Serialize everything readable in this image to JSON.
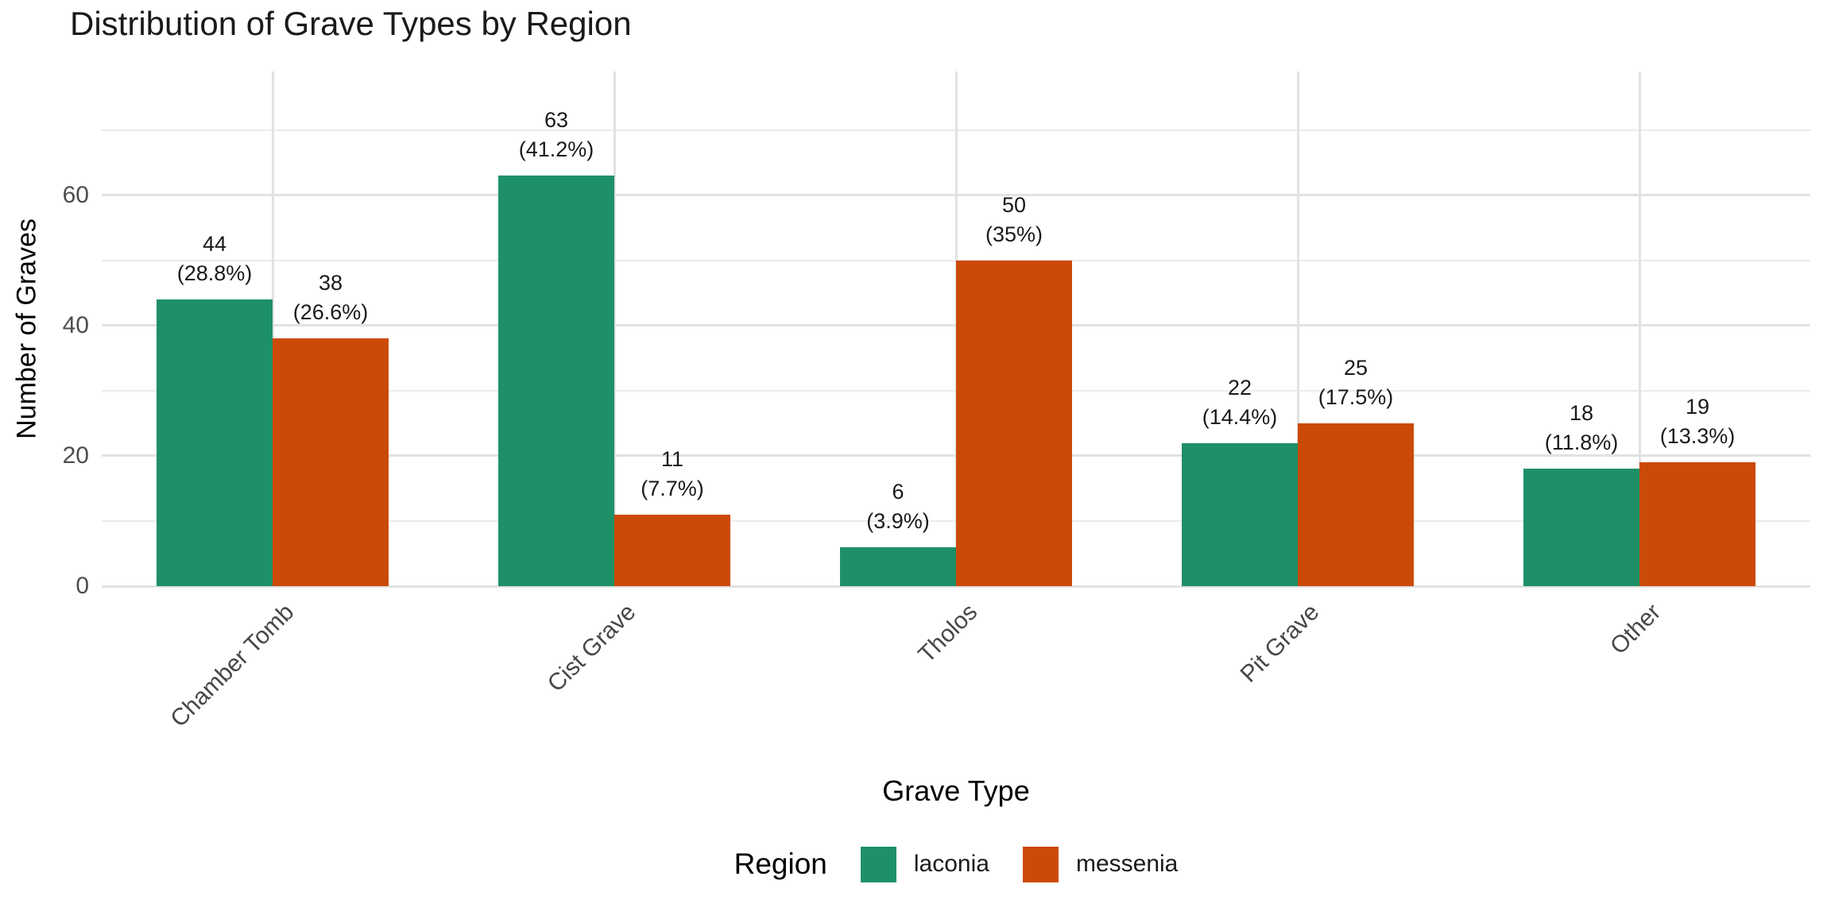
{
  "title": "Distribution of Grave Types by Region",
  "axes": {
    "x_title": "Grave Type",
    "y_title": "Number of Graves",
    "y_tick_labels": [
      "0",
      "20",
      "40",
      "60"
    ]
  },
  "legend": {
    "title": "Region",
    "items": [
      {
        "label": "laconia",
        "color": "#1E9068"
      },
      {
        "label": "messenia",
        "color": "#CC4A08"
      }
    ]
  },
  "colors": {
    "laconia": "#1E9068",
    "messenia": "#CC4A08",
    "grid_major": "#e2e2e2",
    "grid_minor": "#ebebeb",
    "tick_text": "#4d4d4d"
  },
  "chart_data": {
    "type": "bar",
    "title": "Distribution of Grave Types by Region",
    "xlabel": "Grave Type",
    "ylabel": "Number of Graves",
    "categories": [
      "Chamber Tomb",
      "Cist Grave",
      "Tholos",
      "Pit Grave",
      "Other"
    ],
    "series": [
      {
        "name": "laconia",
        "color": "#1E9068",
        "values": [
          44,
          63,
          6,
          22,
          18
        ],
        "pct_labels": [
          "28.8%",
          "41.2%",
          "3.9%",
          "14.4%",
          "11.8%"
        ]
      },
      {
        "name": "messenia",
        "color": "#CC4A08",
        "values": [
          38,
          11,
          50,
          25,
          19
        ],
        "pct_labels": [
          "26.6%",
          "7.7%",
          "35%",
          "17.5%",
          "13.3%"
        ]
      }
    ],
    "ylim": [
      0,
      79
    ],
    "y_ticks": [
      0,
      20,
      40,
      60
    ],
    "grid": {
      "major": [
        0,
        20,
        40,
        60
      ],
      "minor": [
        10,
        30,
        50,
        70
      ]
    },
    "grid_on": true,
    "legend_position": "bottom",
    "legend_title": "Region"
  }
}
